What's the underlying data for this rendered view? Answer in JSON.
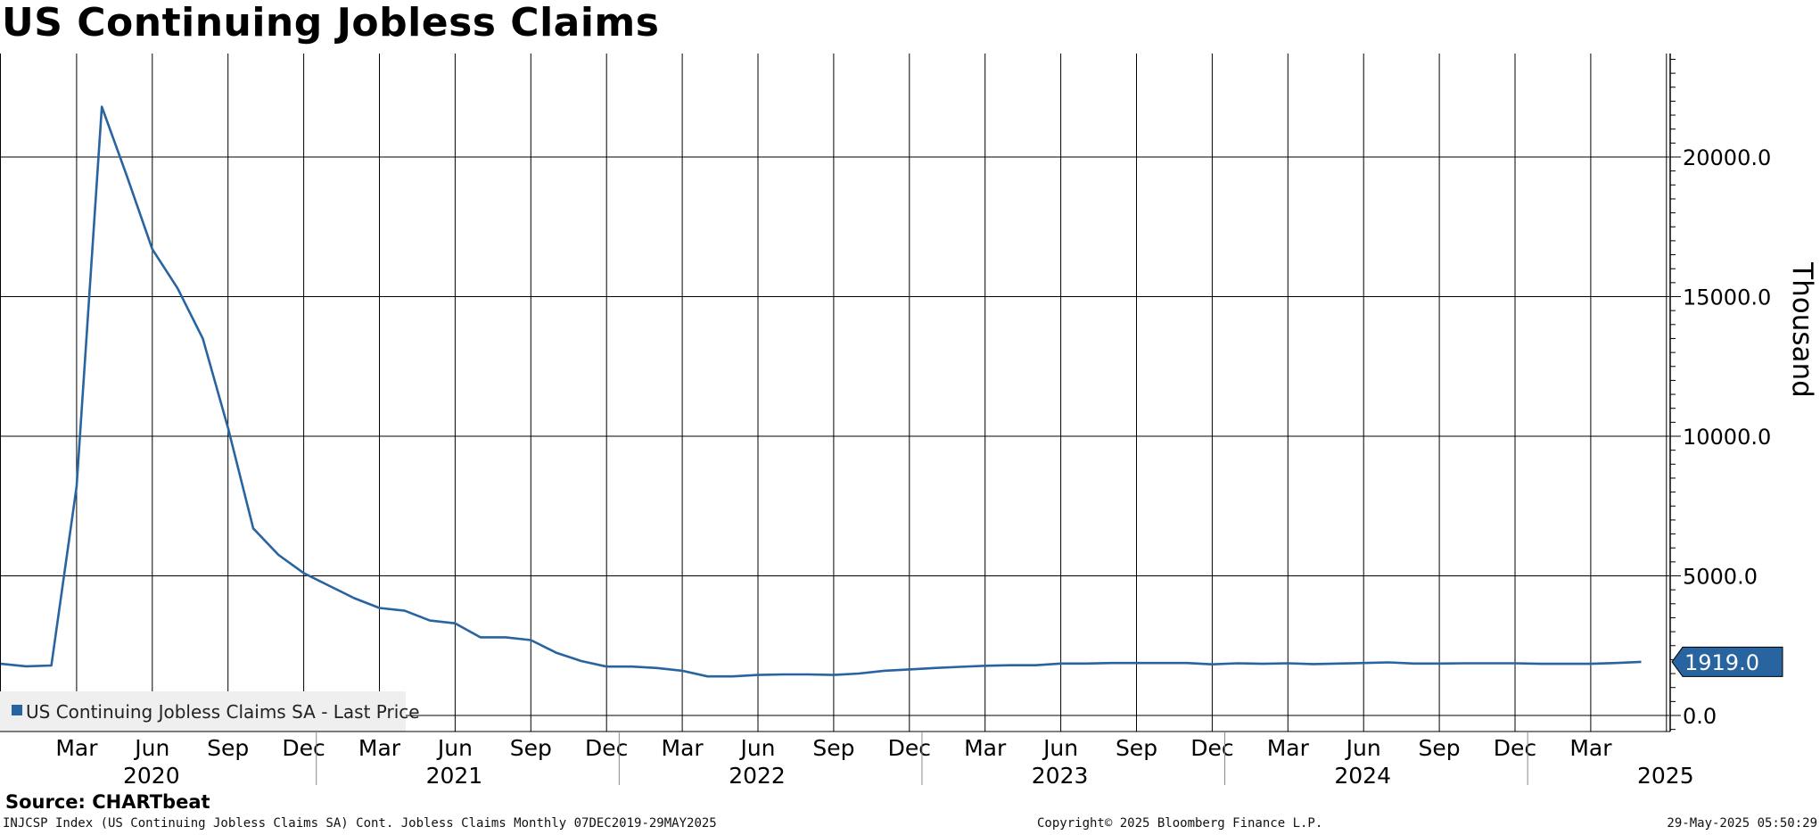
{
  "title": "US Continuing Jobless Claims",
  "source": "Source: CHARTbeat",
  "footer": {
    "left": "INJCSP Index (US Continuing Jobless Claims SA) Cont. Jobless Claims  Monthly 07DEC2019-29MAY2025",
    "middle": "Copyright© 2025 Bloomberg Finance L.P.",
    "right": "29-May-2025 05:50:29"
  },
  "colors": {
    "series": "#2864a0",
    "grid": "#000000",
    "legend_bg": "#efefef"
  },
  "chart_data": {
    "type": "line",
    "title": "US Continuing Jobless Claims",
    "ylabel": "Thousand",
    "xlabel": "",
    "frequency": "Monthly",
    "ylim": [
      -500,
      24000
    ],
    "y_ticks": [
      0,
      5000,
      10000,
      15000,
      20000
    ],
    "y_tick_labels": [
      "0.0",
      "5000.0",
      "10000.0",
      "15000.0",
      "20000.0"
    ],
    "x_month_labels": [
      "Mar",
      "Jun",
      "Sep",
      "Dec",
      "Mar",
      "Jun",
      "Sep",
      "Dec",
      "Mar",
      "Jun",
      "Sep",
      "Dec",
      "Mar",
      "Jun",
      "Sep",
      "Dec",
      "Mar",
      "Jun",
      "Sep",
      "Dec",
      "Mar"
    ],
    "x_year_labels": [
      "2020",
      "2021",
      "2022",
      "2023",
      "2024",
      "2025"
    ],
    "legend": {
      "label": "US Continuing Jobless Claims SA - Last Price",
      "position": "bottom-left"
    },
    "last_value_label": "1919.0",
    "grid": true,
    "series": [
      {
        "name": "US Continuing Jobless Claims SA - Last Price",
        "x": [
          "2019-12",
          "2020-01",
          "2020-02",
          "2020-03",
          "2020-04",
          "2020-05",
          "2020-06",
          "2020-07",
          "2020-08",
          "2020-09",
          "2020-10",
          "2020-11",
          "2020-12",
          "2021-01",
          "2021-02",
          "2021-03",
          "2021-04",
          "2021-05",
          "2021-06",
          "2021-07",
          "2021-08",
          "2021-09",
          "2021-10",
          "2021-11",
          "2021-12",
          "2022-01",
          "2022-02",
          "2022-03",
          "2022-04",
          "2022-05",
          "2022-06",
          "2022-07",
          "2022-08",
          "2022-09",
          "2022-10",
          "2022-11",
          "2022-12",
          "2023-01",
          "2023-02",
          "2023-03",
          "2023-04",
          "2023-05",
          "2023-06",
          "2023-07",
          "2023-08",
          "2023-09",
          "2023-10",
          "2023-11",
          "2023-12",
          "2024-01",
          "2024-02",
          "2024-03",
          "2024-04",
          "2024-05",
          "2024-06",
          "2024-07",
          "2024-08",
          "2024-09",
          "2024-10",
          "2024-11",
          "2024-12",
          "2025-01",
          "2025-02",
          "2025-03",
          "2025-04",
          "2025-05"
        ],
        "values": [
          1850,
          1760,
          1790,
          8200,
          21800,
          19300,
          16700,
          15300,
          13500,
          10300,
          6700,
          5750,
          5100,
          4650,
          4200,
          3850,
          3750,
          3400,
          3300,
          2800,
          2800,
          2700,
          2250,
          1950,
          1750,
          1750,
          1700,
          1600,
          1400,
          1400,
          1450,
          1470,
          1470,
          1450,
          1500,
          1600,
          1650,
          1700,
          1740,
          1780,
          1800,
          1800,
          1860,
          1860,
          1880,
          1880,
          1880,
          1880,
          1830,
          1870,
          1850,
          1870,
          1840,
          1860,
          1880,
          1900,
          1860,
          1860,
          1870,
          1870,
          1870,
          1850,
          1850,
          1850,
          1880,
          1919
        ]
      }
    ]
  }
}
